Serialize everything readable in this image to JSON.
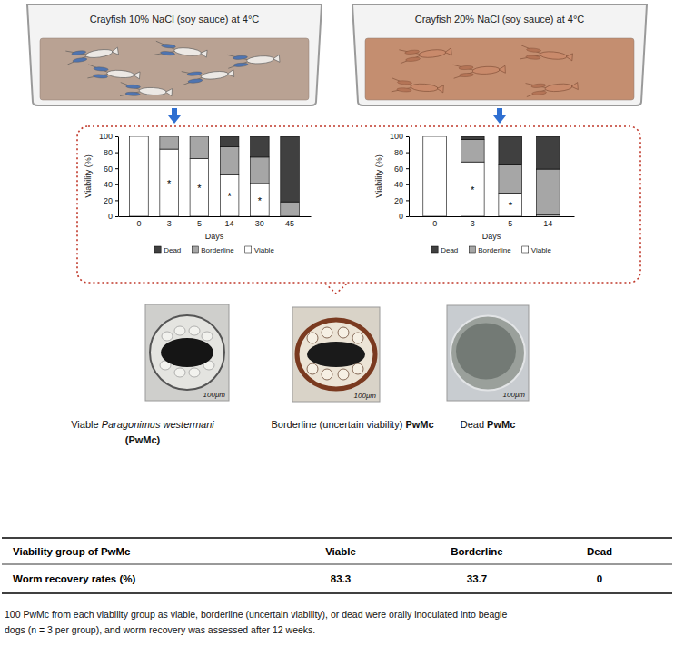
{
  "beakers": [
    {
      "label": "Crayfish 10% NaCl (soy sauce) at 4°C"
    },
    {
      "label": "Crayfish 20% NaCl (soy sauce) at 4°C"
    }
  ],
  "chart_data": [
    {
      "type": "bar",
      "stacked": true,
      "x_label": "Days",
      "y_label": "Viability (%)",
      "categories": [
        "0",
        "3",
        "5",
        "14",
        "30",
        "45"
      ],
      "series": [
        {
          "name": "Viable",
          "color": "#ffffff",
          "values": [
            100,
            84,
            72,
            52,
            41,
            0
          ]
        },
        {
          "name": "Borderline",
          "color": "#a6a6a6",
          "values": [
            0,
            16,
            28,
            35,
            33,
            18
          ]
        },
        {
          "name": "Dead",
          "color": "#404040",
          "values": [
            0,
            0,
            0,
            13,
            26,
            82
          ]
        }
      ],
      "ylim": [
        0,
        100
      ],
      "yticks": [
        0,
        20,
        40,
        60,
        80,
        100
      ],
      "legend": "bottom",
      "annotations": [
        {
          "text": "*",
          "x": "3"
        },
        {
          "text": "*",
          "x": "5"
        },
        {
          "text": "*",
          "x": "14"
        },
        {
          "text": "*",
          "x": "30"
        }
      ]
    },
    {
      "type": "bar",
      "stacked": true,
      "x_label": "Days",
      "y_label": "Viability (%)",
      "categories": [
        "0",
        "3",
        "5",
        "14"
      ],
      "series": [
        {
          "name": "Viable",
          "color": "#ffffff",
          "values": [
            100,
            68,
            29,
            2
          ]
        },
        {
          "name": "Borderline",
          "color": "#a6a6a6",
          "values": [
            0,
            28,
            35,
            57
          ]
        },
        {
          "name": "Dead",
          "color": "#404040",
          "values": [
            0,
            4,
            36,
            41
          ]
        }
      ],
      "ylim": [
        0,
        100
      ],
      "yticks": [
        0,
        20,
        40,
        60,
        80,
        100
      ],
      "legend": "bottom",
      "annotations": [
        {
          "text": "*",
          "x": "3"
        },
        {
          "text": "*",
          "x": "5"
        }
      ]
    }
  ],
  "images": [
    {
      "scale_bar": "100μm",
      "caption": [
        [
          {
            "text": "Viable "
          },
          {
            "text": "Paragonimus westermani",
            "italic": true
          }
        ],
        [
          {
            "text": "(PwMc)",
            "bold": true
          }
        ]
      ]
    },
    {
      "scale_bar": "100μm",
      "caption": [
        [
          {
            "text": "Borderline (uncertain viability) "
          },
          {
            "text": "PwMc",
            "bold": true
          }
        ]
      ]
    },
    {
      "scale_bar": "100μm",
      "caption": [
        [
          {
            "text": "Dead "
          },
          {
            "text": "PwMc",
            "bold": true
          }
        ]
      ]
    }
  ],
  "table": {
    "header": [
      "Viability group of PwMc",
      "Viable",
      "Borderline",
      "Dead"
    ],
    "rows": [
      [
        "Worm recovery rates (%)",
        83.3,
        33.7,
        0
      ]
    ]
  },
  "footnote": [
    "100 PwMc from each viability group as viable, borderline (uncertain viability), or dead were orally inoculated into beagle",
    "dogs (n = 3 per group), and worm recovery was assessed after 12 weeks."
  ]
}
